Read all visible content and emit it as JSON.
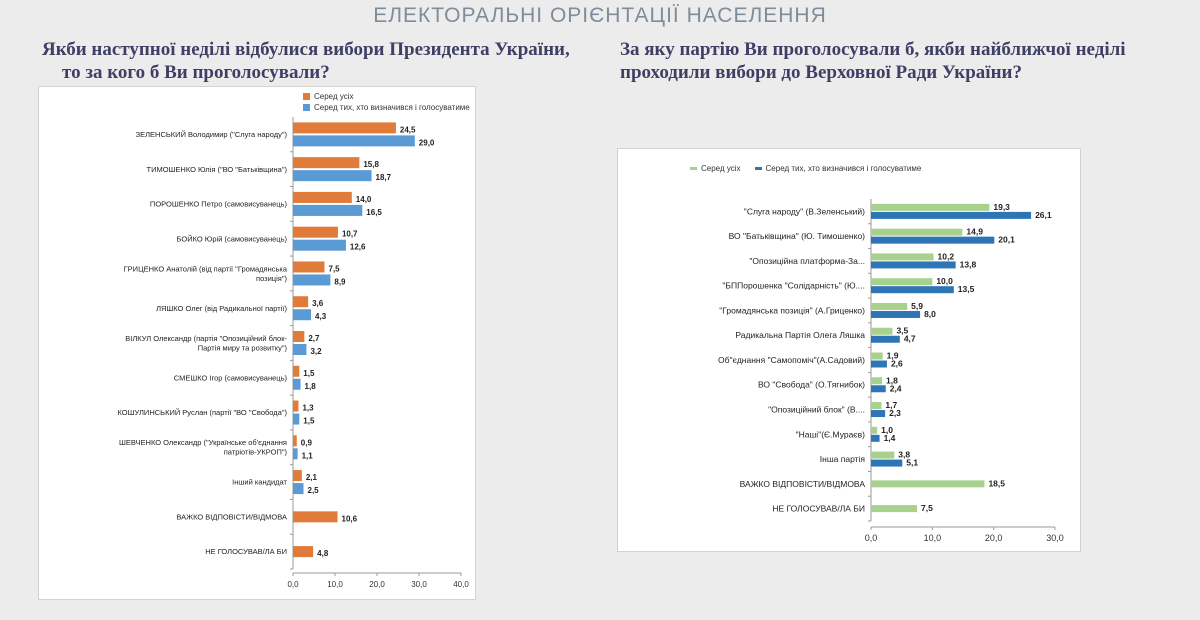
{
  "page": {
    "title": "ЕЛЕКТОРАЛЬНІ ОРІЄНТАЦІЇ НАСЕЛЕННЯ"
  },
  "left": {
    "question_line1": "Якби наступної неділі відбулися вибори Президента України,",
    "question_line2": "то за кого б Ви проголосували?"
  },
  "right": {
    "question_line1": "За яку партію Ви проголосували б, якби найближчої неділі",
    "question_line2": "проходили вибори до Верховної Ради України?"
  },
  "chart_data": [
    {
      "type": "bar",
      "orientation": "horizontal",
      "categories": [
        [
          "ЗЕЛЕНСЬКИЙ Володимир (\"Слуга народу\")"
        ],
        [
          "ТИМОШЕНКО Юлія (\"ВО \"Батьківщина\")"
        ],
        [
          "ПОРОШЕНКО Петро (самовисуванець)"
        ],
        [
          "БОЙКО Юрій (самовисуванець)"
        ],
        [
          "ГРИЦЕНКО Анатолій (від партії \"Громадянська",
          "позиція\")"
        ],
        [
          "ЛЯШКО Олег (від Радикальної партії)"
        ],
        [
          "ВІЛКУЛ Олександр (партія \"Опозиційний блок-",
          "Партія миру та розвитку\")"
        ],
        [
          "СМЕШКО Ігор (самовисуванець)"
        ],
        [
          "КОШУЛИНСЬКИЙ Руслан (партії \"ВО \"Свобода\")"
        ],
        [
          "ШЕВЧЕНКО Олександр (\"Українське об'єднання",
          "патріотів-УКРОП\")"
        ],
        [
          "Інший кандидат"
        ],
        [
          "ВАЖКО ВІДПОВІСТИ/ВІДМОВА"
        ],
        [
          "НЕ ГОЛОСУВАВ/ЛА БИ"
        ]
      ],
      "series": [
        {
          "name": "Серед усіх",
          "color": "#e07b39",
          "values": [
            24.5,
            15.8,
            14.0,
            10.7,
            7.5,
            3.6,
            2.7,
            1.5,
            1.3,
            0.9,
            2.1,
            10.6,
            4.8
          ],
          "labels": [
            "24,5",
            "15,8",
            "14,0",
            "10,7",
            "7,5",
            "3,6",
            "2,7",
            "1,5",
            "1,3",
            "0,9",
            "2,1",
            "10,6",
            "4,8"
          ]
        },
        {
          "name": "Серед тих, хто визначився і голосуватиме",
          "color": "#5b9bd5",
          "values": [
            29.0,
            18.7,
            16.5,
            12.6,
            8.9,
            4.3,
            3.2,
            1.8,
            1.5,
            1.1,
            2.5,
            null,
            null
          ],
          "labels": [
            "29,0",
            "18,7",
            "16,5",
            "12,6",
            "8,9",
            "4,3",
            "3,2",
            "1,8",
            "1,5",
            "1,1",
            "2,5",
            "",
            ""
          ]
        }
      ],
      "xlim": [
        0,
        40
      ],
      "ticks": [
        0,
        10,
        20,
        30,
        40
      ],
      "tick_labels": [
        "0,0",
        "10,0",
        "20,0",
        "30,0",
        "40,0"
      ],
      "legend_position": "top-right",
      "grid": false
    },
    {
      "type": "bar",
      "orientation": "horizontal",
      "categories": [
        [
          "\"Слуга народу\" (В.Зеленський)"
        ],
        [
          "ВО \"Батьківщина\" (Ю. Тимошенко)"
        ],
        [
          "\"Опозиційна платформа-За..."
        ],
        [
          "\"БППорошенка \"Солідарність\" (Ю...."
        ],
        [
          "\"Громадянська позиція\" (А.Гриценко)"
        ],
        [
          "Радикальна Партія Олега Ляшка"
        ],
        [
          "Об\"єднання \"Самопоміч\"(А.Садовий)"
        ],
        [
          "ВО \"Свобода\" (О.Тягнибок)"
        ],
        [
          "\"Опозиційний блок\" (В...."
        ],
        [
          "\"Наші\"(Є.Мураєв)"
        ],
        [
          "Інша партія"
        ],
        [
          "ВАЖКО ВІДПОВІСТИ/ВІДМОВА"
        ],
        [
          "НЕ ГОЛОСУВАВ/ЛА БИ"
        ]
      ],
      "series": [
        {
          "name": "Серед усіх",
          "color": "#a9d18e",
          "values": [
            19.3,
            14.9,
            10.2,
            10.0,
            5.9,
            3.5,
            1.9,
            1.8,
            1.7,
            1.0,
            3.8,
            18.5,
            7.5
          ],
          "labels": [
            "19,3",
            "14,9",
            "10,2",
            "10,0",
            "5,9",
            "3,5",
            "1,9",
            "1,8",
            "1,7",
            "1,0",
            "3,8",
            "18,5",
            "7,5"
          ]
        },
        {
          "name": "Серед тих, хто визначився і голосуватиме",
          "color": "#2e75b6",
          "values": [
            26.1,
            20.1,
            13.8,
            13.5,
            8.0,
            4.7,
            2.6,
            2.4,
            2.3,
            1.4,
            5.1,
            null,
            null
          ],
          "labels": [
            "26,1",
            "20,1",
            "13,8",
            "13,5",
            "8,0",
            "4,7",
            "2,6",
            "2,4",
            "2,3",
            "1,4",
            "5,1",
            "",
            ""
          ]
        }
      ],
      "xlim": [
        0,
        30
      ],
      "ticks": [
        0,
        10,
        20,
        30
      ],
      "tick_labels": [
        "0,0",
        "10,0",
        "20,0",
        "30,0"
      ],
      "legend_position": "top",
      "grid": false
    }
  ]
}
